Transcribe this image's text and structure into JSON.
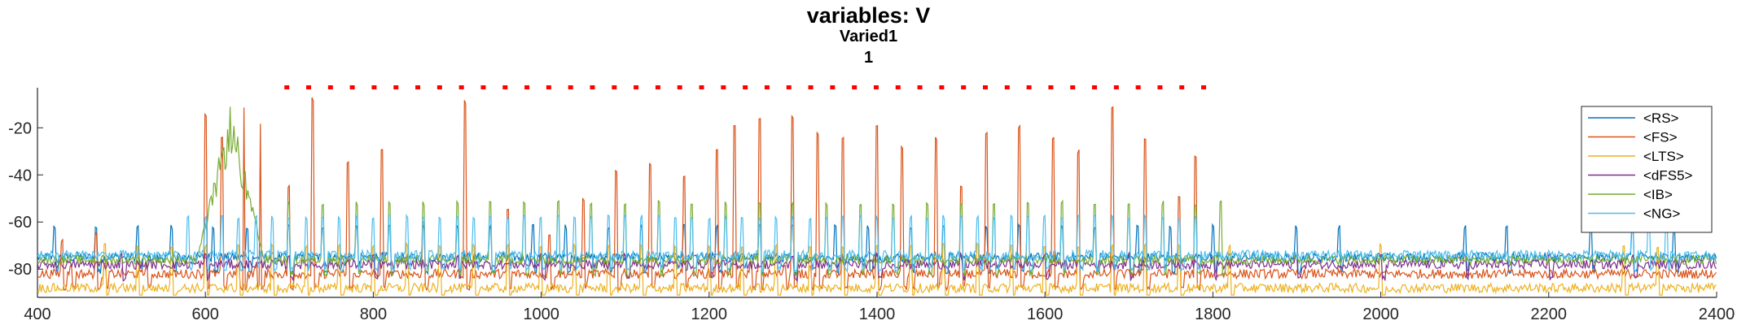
{
  "chart_data": {
    "type": "line",
    "title": "variables: V",
    "subtitle": "Varied1",
    "subtitle2": "1",
    "xlim": [
      400,
      2400
    ],
    "ylim": [
      -92,
      -3
    ],
    "xticks": [
      400,
      600,
      800,
      1000,
      1200,
      1400,
      1600,
      1800,
      2000,
      2200,
      2400
    ],
    "yticks": [
      -20,
      -40,
      -60,
      -80
    ],
    "legend_position": "top-right",
    "series": [
      {
        "name": "<RS>",
        "color": "#0072BD",
        "baseline": -75,
        "spike_to": -62,
        "spikes": [
          420,
          470,
          520,
          560,
          610,
          650,
          700,
          740,
          780,
          820,
          860,
          900,
          940,
          990,
          1030,
          1080,
          1120,
          1170,
          1210,
          1260,
          1300,
          1350,
          1390,
          1440,
          1480,
          1530,
          1570,
          1620,
          1660,
          1710,
          1750,
          1800,
          1900,
          1950,
          2100,
          2150,
          2250,
          2300,
          2350
        ]
      },
      {
        "name": "<FS>",
        "color": "#D95319",
        "baseline": -82,
        "spike_to": -78,
        "spikes": [
          440,
          480,
          530,
          600,
          620,
          640,
          660,
          700,
          730,
          770,
          810,
          860,
          910,
          960,
          1010,
          1050,
          1090,
          1130,
          1170,
          1210,
          1250,
          1290,
          1320,
          1360,
          1400,
          1440,
          1480,
          1530,
          1570,
          1610,
          1640,
          1680,
          1720,
          1780
        ],
        "peaks": [
          [
            430,
            -68
          ],
          [
            470,
            -65
          ],
          [
            600,
            -15
          ],
          [
            620,
            -25
          ],
          [
            645,
            -12
          ],
          [
            665,
            -18
          ],
          [
            700,
            -45
          ],
          [
            728,
            -8
          ],
          [
            770,
            -35
          ],
          [
            810,
            -30
          ],
          [
            860,
            -60
          ],
          [
            910,
            -9
          ],
          [
            960,
            -55
          ],
          [
            1010,
            -65
          ],
          [
            1050,
            -50
          ],
          [
            1090,
            -38
          ],
          [
            1130,
            -35
          ],
          [
            1170,
            -40
          ],
          [
            1210,
            -30
          ],
          [
            1230,
            -20
          ],
          [
            1260,
            -17
          ],
          [
            1300,
            -15
          ],
          [
            1330,
            -22
          ],
          [
            1360,
            -25
          ],
          [
            1400,
            -20
          ],
          [
            1430,
            -28
          ],
          [
            1470,
            -25
          ],
          [
            1500,
            -45
          ],
          [
            1530,
            -23
          ],
          [
            1570,
            -20
          ],
          [
            1610,
            -25
          ],
          [
            1640,
            -30
          ],
          [
            1680,
            -12
          ],
          [
            1720,
            -25
          ],
          [
            1760,
            -50
          ],
          [
            1780,
            -32
          ]
        ]
      },
      {
        "name": "<LTS>",
        "color": "#EDB120",
        "baseline": -88,
        "spike_to": -70,
        "spikes": [
          480,
          520,
          560,
          600,
          640,
          680,
          720,
          760,
          800,
          840,
          880,
          920,
          960,
          1000,
          1040,
          1080,
          1120,
          1160,
          1200,
          1240,
          1280,
          1320,
          1360,
          1400,
          1440,
          1480,
          1520,
          1560,
          1600,
          1640,
          1680,
          1720,
          1760,
          1820,
          2000,
          2290,
          2330
        ]
      },
      {
        "name": "<dFS5>",
        "color": "#7E2F8E",
        "baseline": -78,
        "spike_to": -74,
        "spikes": [
          500,
          600,
          700,
          800,
          900,
          1000,
          1100,
          1200,
          1300,
          1400,
          1500,
          1600,
          1700,
          1800,
          1900,
          2000,
          2100,
          2200,
          2300
        ]
      },
      {
        "name": "<IB>",
        "color": "#77AC30",
        "baseline": -76,
        "spike_to": -52,
        "spikes": [
          700,
          740,
          780,
          820,
          860,
          900,
          940,
          980,
          1020,
          1060,
          1100,
          1140,
          1180,
          1220,
          1260,
          1300,
          1340,
          1380,
          1420,
          1460,
          1500,
          1540,
          1580,
          1620,
          1660,
          1700,
          1740,
          1780,
          1810
        ],
        "burst": [
          590,
          670,
          -20
        ]
      },
      {
        "name": "<NG>",
        "color": "#4DBEEE",
        "baseline": -74,
        "spike_to": -58,
        "spikes": [
          580,
          600,
          620,
          640,
          660,
          680,
          700,
          720,
          740,
          760,
          780,
          800,
          820,
          840,
          860,
          880,
          900,
          920,
          940,
          960,
          980,
          1000,
          1020,
          1040,
          1060,
          1080,
          1100,
          1120,
          1140,
          1160,
          1180,
          1200,
          1220,
          1240,
          1260,
          1280,
          1300,
          1320,
          1340,
          1360,
          1380,
          1400,
          1420,
          1440,
          1460,
          1480,
          1500,
          1520,
          1540,
          1560,
          1580,
          1600,
          1620,
          1640,
          1660,
          1680,
          1700,
          1720,
          1740,
          1760,
          1780,
          2300,
          2320,
          2340
        ]
      }
    ],
    "stim_markers": {
      "color": "#FF0000",
      "y": -3,
      "x": [
        697,
        723,
        749,
        775,
        801,
        827,
        853,
        879,
        905,
        931,
        957,
        983,
        1009,
        1035,
        1061,
        1087,
        1113,
        1139,
        1165,
        1191,
        1217,
        1243,
        1269,
        1295,
        1321,
        1347,
        1373,
        1399,
        1425,
        1451,
        1477,
        1503,
        1529,
        1555,
        1581,
        1607,
        1633,
        1659,
        1685,
        1711,
        1737,
        1763,
        1789
      ]
    }
  }
}
